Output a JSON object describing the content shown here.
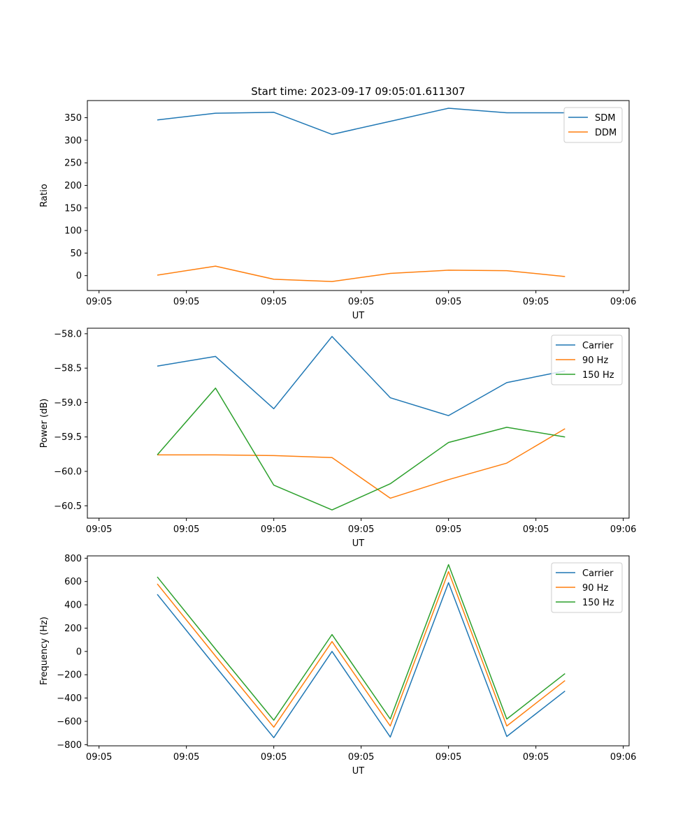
{
  "figure": {
    "title": "Start time: 2023-09-17 09:05:01.611307"
  },
  "colors": {
    "blue": "#1f77b4",
    "orange": "#ff7f0e",
    "green": "#2ca02c"
  },
  "chart_data": [
    {
      "type": "line",
      "title": "Start time: 2023-09-17 09:05:01.611307",
      "xlabel": "UT",
      "ylabel": "Ratio",
      "x": [
        1,
        2,
        3,
        4,
        5,
        6,
        7,
        8
      ],
      "xlim": [
        -0.2,
        9.1
      ],
      "xticks": [
        0,
        1.5,
        3,
        4.5,
        6,
        7.5,
        9
      ],
      "xtick_labels": [
        "09:05",
        "09:05",
        "09:05",
        "09:05",
        "09:05",
        "09:05",
        "09:06"
      ],
      "ylim": [
        -33,
        388
      ],
      "yticks": [
        0,
        50,
        100,
        150,
        200,
        250,
        300,
        350
      ],
      "ytick_labels": [
        "0",
        "50",
        "100",
        "150",
        "200",
        "250",
        "300",
        "350"
      ],
      "legend_position": "upper right",
      "series": [
        {
          "name": "SDM",
          "color": "#1f77b4",
          "values": [
            345,
            360,
            362,
            313,
            342,
            371,
            361,
            361
          ]
        },
        {
          "name": "DDM",
          "color": "#ff7f0e",
          "values": [
            1,
            21,
            -8,
            -13,
            5,
            12,
            11,
            -2
          ]
        }
      ]
    },
    {
      "type": "line",
      "title": "",
      "xlabel": "UT",
      "ylabel": "Power (dB)",
      "x": [
        1,
        2,
        3,
        4,
        5,
        6,
        7,
        8
      ],
      "xlim": [
        -0.2,
        9.1
      ],
      "xticks": [
        0,
        1.5,
        3,
        4.5,
        6,
        7.5,
        9
      ],
      "xtick_labels": [
        "09:05",
        "09:05",
        "09:05",
        "09:05",
        "09:05",
        "09:05",
        "09:06"
      ],
      "ylim": [
        -60.68,
        -57.92
      ],
      "yticks": [
        -60.5,
        -60.0,
        -59.5,
        -59.0,
        -58.5,
        -58.0
      ],
      "ytick_labels": [
        "−60.5",
        "−60.0",
        "−59.5",
        "−59.0",
        "−58.5",
        "−58.0"
      ],
      "legend_position": "upper right",
      "series": [
        {
          "name": "Carrier",
          "color": "#1f77b4",
          "values": [
            -58.47,
            -58.33,
            -59.09,
            -58.04,
            -58.93,
            -59.19,
            -58.71,
            -58.54
          ]
        },
        {
          "name": "90 Hz",
          "color": "#ff7f0e",
          "values": [
            -59.76,
            -59.76,
            -59.77,
            -59.8,
            -60.39,
            -60.12,
            -59.88,
            -59.38
          ]
        },
        {
          "name": "150 Hz",
          "color": "#2ca02c",
          "values": [
            -59.76,
            -58.79,
            -60.2,
            -60.56,
            -60.18,
            -59.58,
            -59.36,
            -59.5
          ]
        }
      ]
    },
    {
      "type": "line",
      "title": "",
      "xlabel": "UT",
      "ylabel": "Frequency (Hz)",
      "x": [
        1,
        2,
        3,
        4,
        5,
        6,
        7,
        8
      ],
      "xlim": [
        -0.2,
        9.1
      ],
      "xticks": [
        0,
        1.5,
        3,
        4.5,
        6,
        7.5,
        9
      ],
      "xtick_labels": [
        "09:05",
        "09:05",
        "09:05",
        "09:05",
        "09:05",
        "09:05",
        "09:06"
      ],
      "ylim": [
        -810,
        820
      ],
      "yticks": [
        -800,
        -600,
        -400,
        -200,
        0,
        200,
        400,
        600,
        800
      ],
      "ytick_labels": [
        "−800",
        "−600",
        "−400",
        "−200",
        "0",
        "200",
        "400",
        "600",
        "800"
      ],
      "legend_position": "upper right",
      "series": [
        {
          "name": "Carrier",
          "color": "#1f77b4",
          "values": [
            490,
            -130,
            -740,
            0,
            -735,
            590,
            -730,
            -340
          ]
        },
        {
          "name": "90 Hz",
          "color": "#ff7f0e",
          "values": [
            580,
            -40,
            -650,
            85,
            -640,
            685,
            -640,
            -250
          ]
        },
        {
          "name": "150 Hz",
          "color": "#2ca02c",
          "values": [
            640,
            20,
            -590,
            145,
            -580,
            745,
            -580,
            -190
          ]
        }
      ]
    }
  ]
}
